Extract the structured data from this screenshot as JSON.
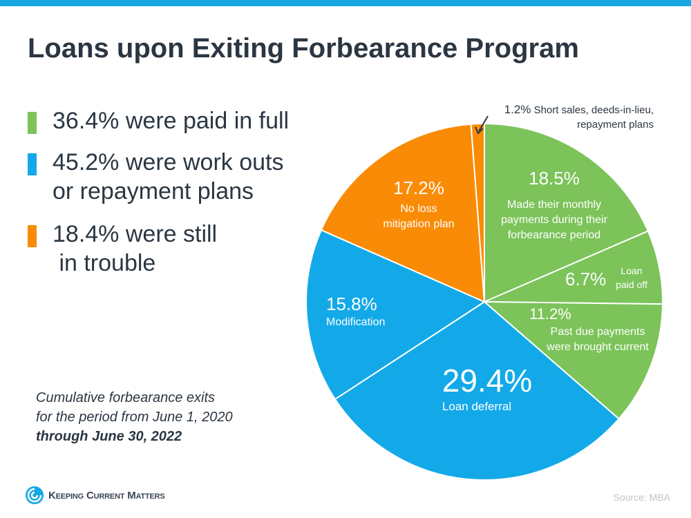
{
  "title": "Loans upon Exiting Forbearance Program",
  "legend": [
    {
      "text": "36.4% were paid in full",
      "color": "#7cc35a"
    },
    {
      "text": "45.2% were work outs",
      "text2": "or repayment plans",
      "color": "#13a9e8"
    },
    {
      "text": "18.4% were still",
      "text2": " in trouble",
      "color": "#f98b06"
    }
  ],
  "note": {
    "line1": "Cumulative forbearance exits",
    "line2": "for the period from June 1, 2020",
    "line3": "through June 30, 2022"
  },
  "source": "Source: MBA",
  "logo": {
    "text": "Keeping Current Matters",
    "icon": "swirl-logo-icon"
  },
  "chart_data": {
    "type": "pie",
    "start": "top, clockwise",
    "slices": [
      {
        "value": 18.5,
        "label": "18.5%",
        "desc": "Made their monthly payments during their forbearance period",
        "color": "#7cc35a"
      },
      {
        "value": 6.7,
        "label": "6.7%",
        "desc": "Loan paid off",
        "color": "#7cc35a"
      },
      {
        "value": 11.2,
        "label": "11.2%",
        "desc": "Past due payments were brought current",
        "color": "#7cc35a"
      },
      {
        "value": 29.4,
        "label": "29.4%",
        "desc": "Loan deferral",
        "color": "#13a9e8"
      },
      {
        "value": 15.8,
        "label": "15.8%",
        "desc": "Modification",
        "color": "#13a9e8"
      },
      {
        "value": 17.2,
        "label": "17.2%",
        "desc": "No loss mitigation plan",
        "color": "#f98b06"
      },
      {
        "value": 1.2,
        "label": "1.2%",
        "desc": "Short sales, deeds-in-lieu, repayment plans",
        "color": "#f98b06"
      }
    ]
  }
}
